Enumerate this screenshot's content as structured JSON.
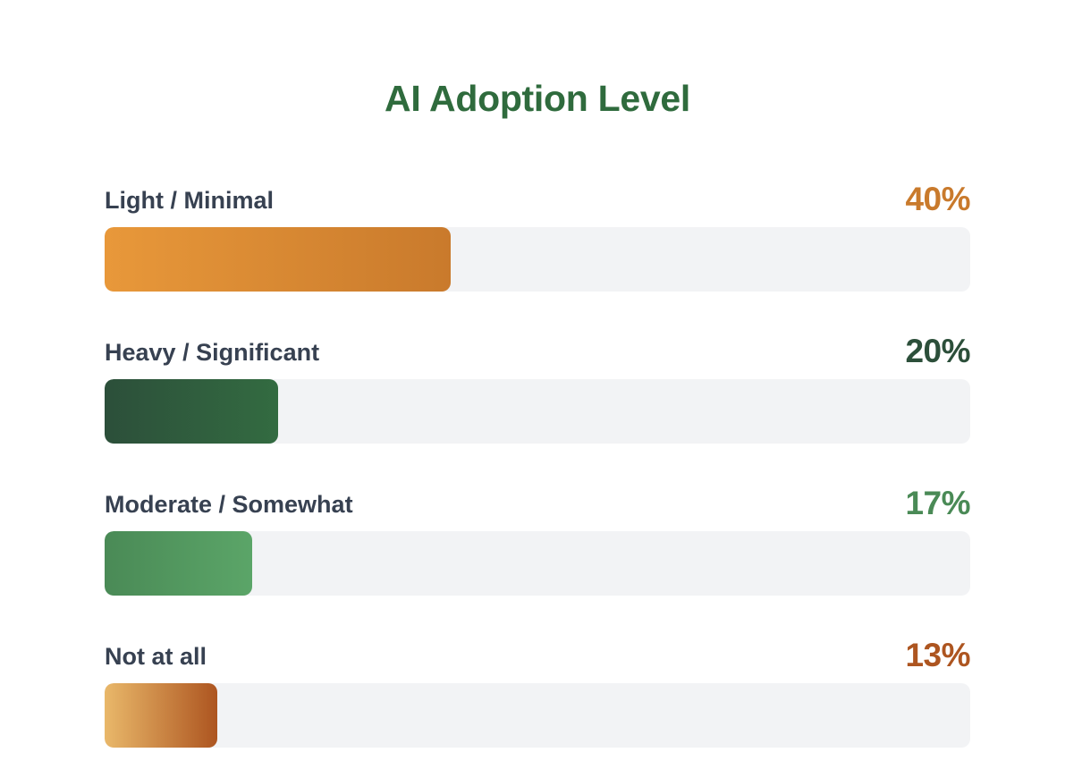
{
  "chart_data": {
    "type": "bar",
    "orientation": "horizontal",
    "title": "AI Adoption Level",
    "categories": [
      "Light / Minimal",
      "Heavy / Significant",
      "Moderate / Somewhat",
      "Not at all"
    ],
    "values": [
      40,
      20,
      17,
      13
    ],
    "value_labels": [
      "40%",
      "20%",
      "17%",
      "13%"
    ],
    "unit": "%",
    "xlim": [
      0,
      100
    ],
    "grid": false,
    "legend": "none",
    "colors": {
      "title": "#2f6b3d",
      "label_text": "#374151",
      "track": "#f2f3f5"
    },
    "bars": [
      {
        "gradient": [
          "#e8983a",
          "#c97a2c"
        ],
        "value_color": "#c97a2c"
      },
      {
        "gradient": [
          "#2c4f3a",
          "#336b41"
        ],
        "value_color": "#2c4f3a"
      },
      {
        "gradient": [
          "#4a8a56",
          "#5ba568"
        ],
        "value_color": "#4a8a56"
      },
      {
        "gradient": [
          "#e9b86a",
          "#ad5520"
        ],
        "value_color": "#ad5520"
      }
    ]
  }
}
